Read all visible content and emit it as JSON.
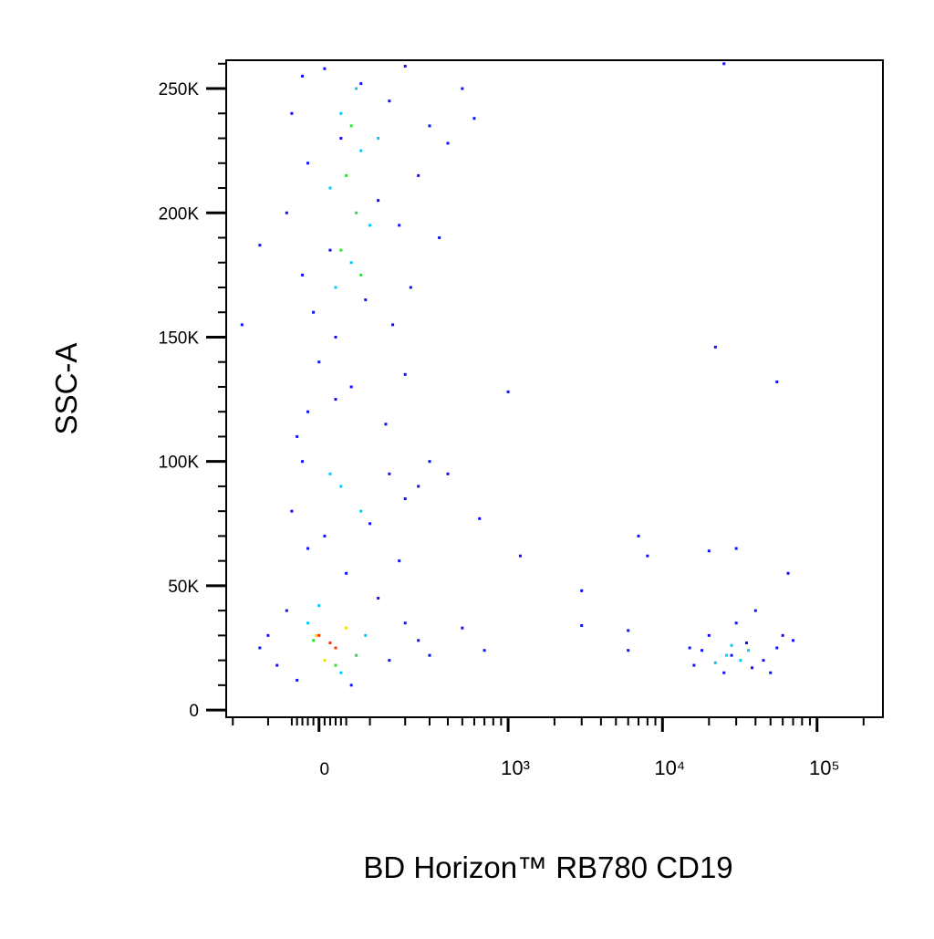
{
  "chart_data": {
    "type": "scatter",
    "x_label": "BD Horizon™ RB780 CD19",
    "y_label": "SSC-A",
    "xscale": "asinh",
    "asinh_width": 120,
    "xlim": [
      -224,
      266800
    ],
    "ylim": [
      -2900,
      261400
    ],
    "xticks": [
      0,
      {
        "value": 1000,
        "label": "10³"
      },
      {
        "value": 10000,
        "label": "10⁴"
      },
      {
        "value": 100000,
        "label": "10⁵"
      }
    ],
    "xminorticks": [
      -200,
      -100,
      -50,
      -40,
      -30,
      -20,
      -10,
      10,
      20,
      30,
      40,
      50,
      100,
      200,
      300,
      400,
      500,
      600,
      700,
      800,
      900,
      2000,
      3000,
      4000,
      5000,
      6000,
      7000,
      8000,
      9000,
      20000,
      30000,
      40000,
      50000,
      60000,
      70000,
      80000,
      90000,
      200000
    ],
    "yticks": [
      0,
      {
        "value": 50000,
        "label": "50K"
      },
      {
        "value": 100000,
        "label": "100K"
      },
      {
        "value": 150000,
        "label": "150K"
      },
      {
        "value": 200000,
        "label": "200K"
      },
      {
        "value": 250000,
        "label": "250K"
      }
    ],
    "yminorticks": [
      10000,
      20000,
      30000,
      40000,
      60000,
      70000,
      80000,
      90000,
      110000,
      120000,
      130000,
      140000,
      160000,
      170000,
      180000,
      190000,
      210000,
      220000,
      230000,
      240000,
      260000
    ],
    "series": [
      {
        "color": "#1010ff",
        "x": [
          -30,
          10,
          80,
          200,
          150,
          -50,
          300,
          40,
          -20,
          250,
          120,
          -60,
          180,
          350,
          20,
          -30,
          220,
          90,
          -10,
          160,
          400,
          500,
          600,
          -120,
          30,
          0,
          60,
          -20,
          140,
          30,
          200,
          -40,
          -30,
          150,
          200,
          -50,
          10,
          100,
          250,
          -20,
          180,
          50,
          300,
          400,
          -100,
          -80,
          150,
          200,
          -60,
          120,
          250,
          -40,
          60,
          300,
          -120,
          1000,
          650,
          1200,
          3000,
          3000,
          7000,
          8000,
          20000,
          30000,
          22000,
          55000,
          -170,
          25000,
          700,
          500,
          6000,
          6000,
          65000,
          16000,
          20000,
          25000,
          35000,
          45000,
          55000,
          18000,
          30000,
          40000,
          60000,
          28000,
          15000,
          50000,
          38000,
          70000
        ],
        "y": [
          255000,
          258000,
          252000,
          259000,
          245000,
          240000,
          235000,
          230000,
          220000,
          215000,
          205000,
          200000,
          195000,
          190000,
          185000,
          175000,
          170000,
          165000,
          160000,
          155000,
          228000,
          250000,
          238000,
          187000,
          150000,
          140000,
          130000,
          120000,
          115000,
          125000,
          135000,
          110000,
          100000,
          95000,
          85000,
          80000,
          70000,
          75000,
          90000,
          65000,
          60000,
          55000,
          100000,
          95000,
          30000,
          18000,
          20000,
          35000,
          40000,
          45000,
          28000,
          12000,
          10000,
          22000,
          25000,
          128000,
          77000,
          62000,
          48000,
          34000,
          70000,
          62000,
          64000,
          65000,
          146000,
          132000,
          155000,
          260000,
          24000,
          33000,
          32000,
          24000,
          55000,
          18000,
          30000,
          15000,
          27000,
          20000,
          25000,
          24000,
          35000,
          40000,
          30000,
          22000,
          25000,
          15000,
          17000,
          28000
        ]
      },
      {
        "color": "#00c8ff",
        "x": [
          40,
          80,
          20,
          100,
          60,
          30,
          120,
          70,
          40,
          80,
          20,
          -20,
          90,
          40,
          0,
          26000,
          32000,
          28000,
          22000,
          36000
        ],
        "y": [
          240000,
          225000,
          210000,
          195000,
          180000,
          170000,
          230000,
          250000,
          90000,
          80000,
          95000,
          35000,
          30000,
          15000,
          42000,
          22000,
          20000,
          26000,
          19000,
          24000
        ]
      },
      {
        "color": "#30e030",
        "x": [
          60,
          50,
          70,
          40,
          80,
          -10,
          70,
          30
        ],
        "y": [
          235000,
          215000,
          200000,
          185000,
          175000,
          28000,
          22000,
          18000
        ]
      },
      {
        "color": "#f0e000",
        "x": [
          10,
          50,
          -5
        ],
        "y": [
          20000,
          33000,
          30000
        ]
      },
      {
        "color": "#ff3000",
        "x": [
          20,
          0,
          30
        ],
        "y": [
          27000,
          30000,
          25000
        ]
      }
    ]
  }
}
